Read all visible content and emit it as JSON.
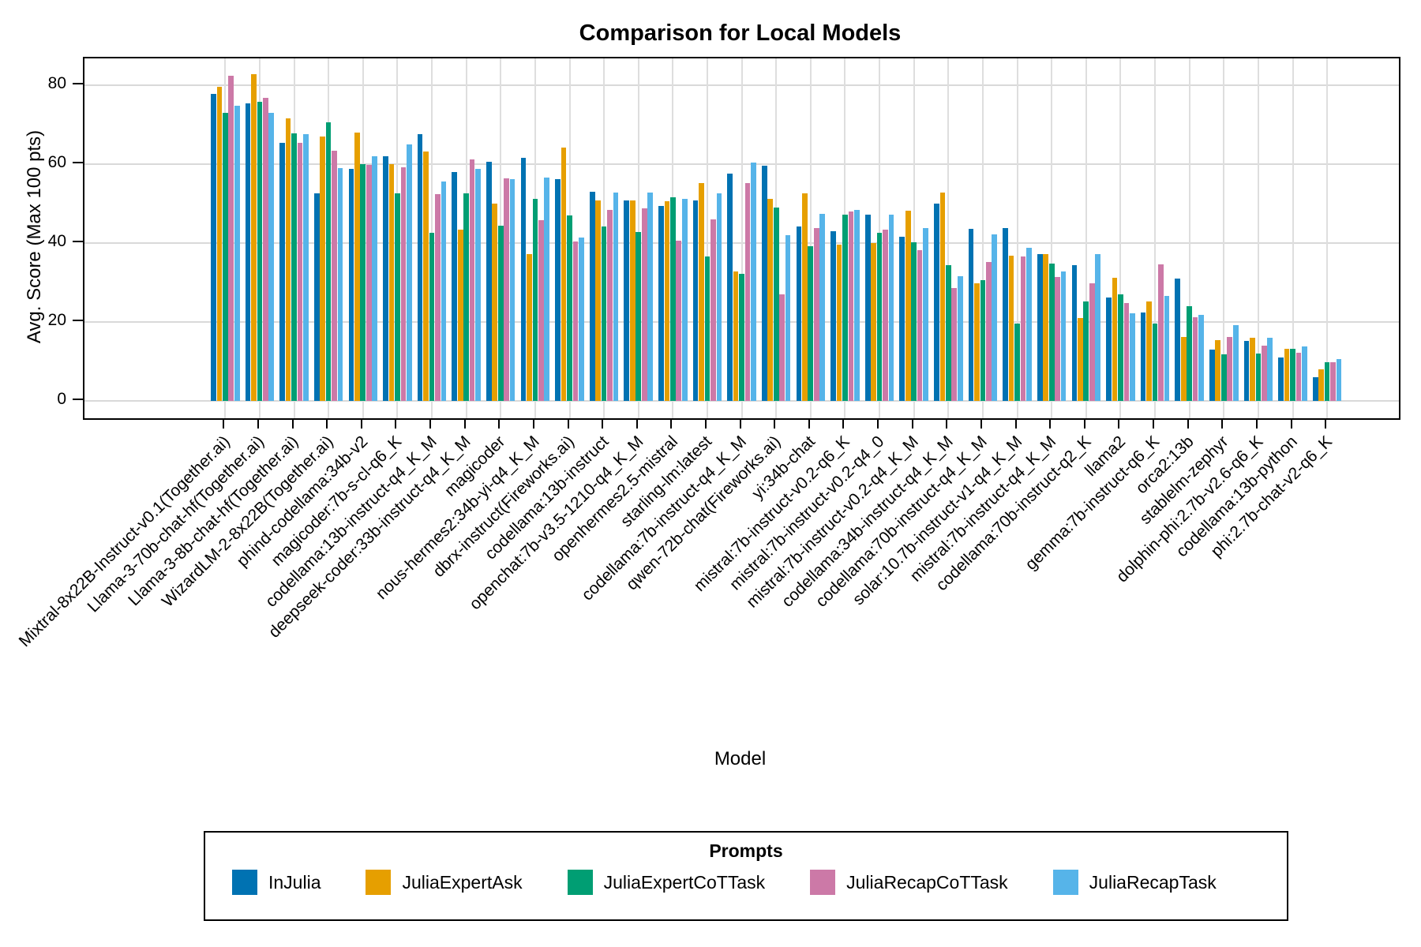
{
  "chart_data": {
    "type": "bar",
    "title": "Comparison for Local Models",
    "xlabel": "Model",
    "ylabel": "Avg. Score (Max 100 pts)",
    "ylim": [
      -4.6,
      86.9
    ],
    "yticks": [
      0,
      20,
      40,
      60,
      80
    ],
    "grid": true,
    "legend_title": "Prompts",
    "legend_position": "bottom",
    "categories": [
      "Mixtral-8x22B-Instruct-v0.1(Together.ai)",
      "Llama-3-70b-chat-hf(Together.ai)",
      "Llama-3-8b-chat-hf(Together.ai)",
      "WizardLM-2-8x22B(Together.ai)",
      "phind-codellama:34b-v2",
      "magicoder:7b-s-cl-q6_K",
      "codellama:13b-instruct-q4_K_M",
      "deepseek-coder:33b-instruct-q4_K_M",
      "magicoder",
      "nous-hermes2:34b-yi-q4_K_M",
      "dbrx-instruct(Fireworks.ai)",
      "codellama:13b-instruct",
      "openchat:7b-v3.5-1210-q4_K_M",
      "openhermes2.5-mistral",
      "starling-lm:latest",
      "codellama:7b-instruct-q4_K_M",
      "qwen-72b-chat(Fireworks.ai)",
      "yi:34b-chat",
      "mistral:7b-instruct-v0.2-q6_K",
      "mistral:7b-instruct-v0.2-q4_0",
      "mistral:7b-instruct-v0.2-q4_K_M",
      "codellama:34b-instruct-q4_K_M",
      "codellama:70b-instruct-q4_K_M",
      "solar:10.7b-instruct-v1-q4_K_M",
      "mistral:7b-instruct-q4_K_M",
      "codellama:70b-instruct-q2_K",
      "llama2",
      "gemma:7b-instruct-q6_K",
      "orca2:13b",
      "stablelm-zephyr",
      "dolphin-phi:2.7b-v2.6-q6_K",
      "codellama:13b-python",
      "phi:2.7b-chat-v2-q6_K"
    ],
    "series": [
      {
        "name": "InJulia",
        "color": "#0072B2",
        "values": [
          77.8,
          75.5,
          65.4,
          52.7,
          58.9,
          62.1,
          67.6,
          58.0,
          60.7,
          61.7,
          56.2,
          53.0,
          50.8,
          49.5,
          50.9,
          57.6,
          59.6,
          44.3,
          43.1,
          47.2,
          41.7,
          50.0,
          43.7,
          43.9,
          37.2,
          34.5,
          26.3,
          22.5,
          31.1,
          13.1,
          15.3,
          11.0,
          6.0
        ]
      },
      {
        "name": "JuliaExpertAsk",
        "color": "#E69F00",
        "values": [
          79.7,
          82.8,
          71.7,
          67.0,
          68.0,
          60.0,
          63.3,
          43.5,
          50.0,
          37.2,
          64.2,
          50.9,
          50.9,
          50.6,
          55.3,
          32.9,
          51.3,
          52.7,
          39.7,
          40.1,
          48.3,
          52.9,
          29.8,
          36.9,
          37.2,
          21.1,
          31.3,
          25.2,
          16.3,
          15.5,
          16.0,
          13.2,
          8.0
        ]
      },
      {
        "name": "JuliaExpertCoTTask",
        "color": "#009E73",
        "values": [
          73.0,
          75.8,
          67.9,
          70.7,
          60.1,
          52.7,
          42.6,
          52.7,
          44.5,
          51.3,
          47.1,
          44.3,
          42.9,
          51.6,
          36.7,
          32.3,
          49.1,
          39.2,
          47.3,
          42.7,
          40.3,
          34.5,
          30.7,
          19.7,
          34.9,
          25.3,
          27.1,
          19.7,
          24.0,
          11.8,
          12.1,
          13.3,
          9.9
        ]
      },
      {
        "name": "JuliaRecapCoTTask",
        "color": "#CC79A7",
        "values": [
          82.5,
          76.8,
          65.5,
          63.4,
          59.9,
          59.3,
          52.5,
          61.2,
          56.5,
          45.9,
          40.5,
          48.4,
          48.9,
          40.7,
          46.0,
          55.2,
          27.0,
          43.9,
          48.1,
          43.5,
          38.3,
          28.7,
          35.3,
          36.6,
          31.5,
          29.9,
          24.8,
          34.7,
          21.3,
          16.3,
          14.0,
          12.3,
          9.8
        ]
      },
      {
        "name": "JuliaRecapTask",
        "color": "#56B4E9",
        "values": [
          74.8,
          73.1,
          67.6,
          59.0,
          62.0,
          65.1,
          55.7,
          58.9,
          56.2,
          56.7,
          41.5,
          52.8,
          52.9,
          51.2,
          52.7,
          60.4,
          42.1,
          47.5,
          48.5,
          47.2,
          43.9,
          31.7,
          42.3,
          38.9,
          32.9,
          37.2,
          22.3,
          26.7,
          21.8,
          19.2,
          16.1,
          13.9,
          10.6
        ]
      }
    ]
  }
}
